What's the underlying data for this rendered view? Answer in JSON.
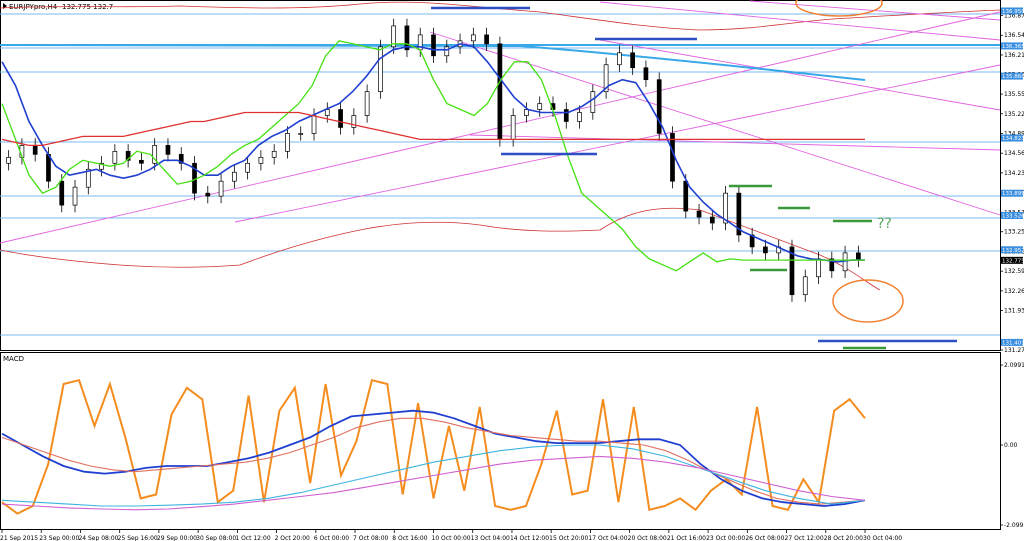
{
  "chart_data": {
    "type": "line",
    "title": "EURJPYpro,H4",
    "quote_text": "132.775 132.7",
    "x_ticks": [
      "21 Sep 2015",
      "23 Sep 00:00",
      "24 Sep 08:00",
      "25 Sep 16:00",
      "29 Sep 00:00",
      "30 Sep 08:00",
      "1 Oct 12:00",
      "2 Oct 20:00",
      "6 Oct 00:00",
      "7 Oct 08:00",
      "8 Oct 16:00",
      "10 Oct 00:00",
      "13 Oct 04:00",
      "14 Oct 12:00",
      "15 Oct 20:00",
      "17 Oct 04:00",
      "20 Oct 08:00",
      "21 Oct 16:00",
      "23 Oct 00:00",
      "26 Oct 08:00",
      "27 Oct 12:00",
      "28 Oct 20:00",
      "30 Oct 04:00"
    ],
    "y_ticks": [
      "136.874",
      "136.544",
      "136.214",
      "135.884",
      "135.559",
      "135.229",
      "134.899",
      "134.569",
      "134.239",
      "133.909",
      "133.579",
      "133.254",
      "132.924",
      "132.594",
      "132.264",
      "131.934",
      "131.274"
    ],
    "ylim": [
      131.274,
      137.0
    ],
    "price_tags": [
      "136.950",
      "136.365",
      "135.860",
      "134.823",
      "133.899",
      "133.526",
      "132.952",
      "132.775",
      "131.401"
    ],
    "close": [
      134.5,
      134.7,
      134.55,
      134.1,
      133.7,
      134.0,
      134.3,
      134.4,
      134.6,
      134.45,
      134.4,
      134.7,
      134.55,
      134.4,
      133.9,
      133.85,
      134.1,
      134.25,
      134.4,
      134.5,
      134.6,
      134.9,
      134.9,
      135.2,
      135.3,
      135.0,
      135.2,
      135.6,
      136.35,
      136.7,
      136.3,
      136.55,
      136.2,
      136.35,
      136.45,
      136.55,
      136.4,
      134.8,
      135.2,
      135.3,
      135.4,
      135.3,
      135.1,
      135.25,
      135.6,
      136.05,
      136.25,
      136.0,
      135.8,
      134.9,
      134.1,
      133.6,
      133.5,
      133.4,
      133.9,
      133.2,
      133.0,
      132.9,
      133.0,
      132.2,
      132.5,
      132.8,
      132.6,
      132.9,
      132.78
    ],
    "series": [
      {
        "name": "",
        "color": "#1f3fd1",
        "values": [
          136.1,
          135.7,
          135.1,
          134.7,
          134.35,
          134.2,
          134.25,
          134.3,
          134.2,
          134.15,
          134.2,
          134.3,
          134.45,
          134.45,
          134.35,
          134.2,
          134.2,
          134.35,
          134.45,
          134.7,
          134.85,
          134.95,
          135.1,
          135.2,
          135.3,
          135.4,
          135.6,
          135.85,
          136.15,
          136.3,
          136.35,
          136.35,
          136.3,
          136.3,
          136.4,
          136.35,
          136.1,
          135.8,
          135.5,
          135.3,
          135.25,
          135.25,
          135.25,
          135.35,
          135.5,
          135.7,
          135.8,
          135.75,
          135.4,
          135.0,
          134.45,
          134.0,
          133.75,
          133.55,
          133.4,
          133.25,
          133.15,
          133.05,
          132.95,
          132.85,
          132.8,
          132.78,
          132.75,
          132.78,
          132.78
        ]
      },
      {
        "name": "",
        "color": "#44e010",
        "values": [
          135.4,
          134.8,
          134.2,
          133.9,
          134.0,
          134.3,
          134.45,
          134.4,
          134.35,
          134.4,
          134.6,
          134.55,
          134.3,
          134.05,
          134.1,
          134.2,
          134.35,
          134.55,
          134.7,
          134.8,
          135.0,
          135.2,
          135.4,
          135.7,
          136.2,
          136.45,
          136.4,
          136.35,
          136.3,
          136.4,
          136.4,
          136.3,
          135.8,
          135.4,
          135.3,
          135.2,
          135.4,
          135.8,
          136.1,
          136.1,
          135.8,
          135.2,
          134.5,
          133.9,
          133.7,
          133.5,
          133.3,
          133.0,
          132.8,
          132.7,
          132.6,
          132.75,
          132.9,
          132.75,
          132.8,
          132.78,
          132.78,
          132.78,
          132.78,
          132.78,
          132.78,
          132.78,
          132.78,
          132.78,
          132.78
        ]
      },
      {
        "name": "",
        "color": "#e03030",
        "values": [
          134.8,
          134.75,
          134.7,
          134.7,
          134.75,
          134.8,
          134.85,
          134.85,
          134.85,
          134.85,
          134.9,
          134.95,
          135.0,
          135.05,
          135.1,
          135.1,
          135.15,
          135.2,
          135.25,
          135.25,
          135.25,
          135.25,
          135.25,
          135.2,
          135.15,
          135.1,
          135.05,
          135.0,
          134.95,
          134.9,
          134.85,
          134.8,
          134.8,
          134.8,
          134.8,
          134.8,
          134.8,
          134.8,
          134.8,
          134.8,
          134.8,
          134.8,
          134.8,
          134.8,
          134.8,
          134.8,
          134.8,
          134.8,
          134.8,
          134.8,
          134.8,
          134.8,
          134.8,
          134.8,
          134.8,
          134.8,
          134.8,
          134.8,
          134.8,
          134.8,
          134.8,
          134.8,
          134.8,
          134.8,
          134.8
        ]
      }
    ],
    "indicator": {
      "name": "MACD",
      "ylim": [
        -2.0991,
        2.0991
      ],
      "y_ticks": [
        "2.0991",
        "0.00",
        "-2.0991"
      ],
      "series": [
        {
          "name": "",
          "color": "#f58c1e",
          "values": [
            -1.5,
            -1.8,
            -1.6,
            -0.5,
            1.6,
            1.7,
            0.5,
            1.6,
            0.2,
            -1.4,
            -1.3,
            0.8,
            1.5,
            1.2,
            -1.5,
            -1.2,
            1.3,
            -1.5,
            0.9,
            1.5,
            -1.0,
            1.6,
            -0.8,
            0.1,
            1.7,
            1.6,
            -1.3,
            1.1,
            -1.4,
            0.5,
            -1.2,
            1.0,
            -1.6,
            -1.7,
            -1.6,
            -0.5,
            0.9,
            -1.3,
            -1.2,
            1.2,
            -1.5,
            1.0,
            -1.7,
            -1.6,
            -1.4,
            -1.7,
            -1.2,
            -0.9,
            -1.3,
            1.0,
            -1.6,
            -1.7,
            -0.9,
            -1.5,
            0.9,
            1.2,
            0.7
          ]
        },
        {
          "name": "",
          "color": "#1f3fd1",
          "values": [
            0.3,
            0.0,
            -0.3,
            -0.55,
            -0.7,
            -0.75,
            -0.7,
            -0.6,
            -0.55,
            -0.55,
            -0.55,
            -0.45,
            -0.35,
            -0.2,
            0.0,
            0.2,
            0.5,
            0.75,
            0.8,
            0.85,
            0.9,
            0.85,
            0.7,
            0.5,
            0.3,
            0.2,
            0.1,
            0.05,
            0.05,
            0.05,
            0.1,
            0.15,
            0.15,
            0.0,
            -0.5,
            -0.9,
            -1.2,
            -1.4,
            -1.5,
            -1.55,
            -1.6,
            -1.55,
            -1.45
          ]
        },
        {
          "name": "",
          "color": "#e07060",
          "values": [
            0.2,
            0.0,
            -0.2,
            -0.4,
            -0.55,
            -0.65,
            -0.7,
            -0.65,
            -0.6,
            -0.55,
            -0.5,
            -0.45,
            -0.35,
            -0.2,
            0.0,
            0.2,
            0.45,
            0.6,
            0.7,
            0.7,
            0.6,
            0.45,
            0.35,
            0.25,
            0.2,
            0.15,
            0.1,
            0.1,
            0.05,
            0.0,
            -0.15,
            -0.4,
            -0.7,
            -0.95,
            -1.2,
            -1.4,
            -1.5,
            -1.55,
            -1.5,
            -1.45
          ]
        },
        {
          "name": "",
          "color": "#3cb4e0",
          "values": [
            -1.45,
            -1.5,
            -1.55,
            -1.6,
            -1.6,
            -1.58,
            -1.55,
            -1.5,
            -1.4,
            -1.25,
            -1.05,
            -0.85,
            -0.65,
            -0.45,
            -0.3,
            -0.15,
            -0.05,
            0.0,
            0.0,
            -0.1,
            -0.3,
            -0.6,
            -0.9,
            -1.2,
            -1.4,
            -1.55,
            -1.45
          ]
        },
        {
          "name": "",
          "color": "#d060d0",
          "values": [
            -1.55,
            -1.6,
            -1.65,
            -1.68,
            -1.7,
            -1.68,
            -1.62,
            -1.55,
            -1.45,
            -1.35,
            -1.25,
            -1.1,
            -0.95,
            -0.8,
            -0.65,
            -0.5,
            -0.4,
            -0.35,
            -0.3,
            -0.35,
            -0.45,
            -0.6,
            -0.8,
            -1.0,
            -1.2,
            -1.35,
            -1.45
          ]
        }
      ]
    },
    "annotations": {
      "question_marks": "??"
    },
    "colors": {
      "bull": "#000000",
      "bear": "#000000",
      "support_lines": "#7ab8f0",
      "trend_lines": "#e060e0",
      "annotation_blue": "#2c4fc4",
      "annotation_green": "#3a9a3a",
      "annotation_orange": "#f08030"
    }
  }
}
